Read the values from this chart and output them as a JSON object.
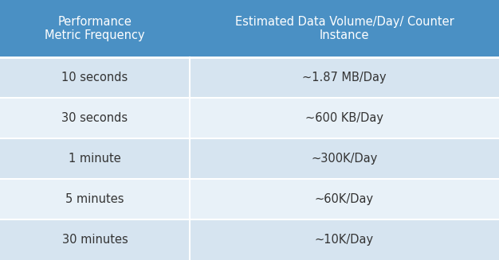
{
  "header": [
    "Performance\nMetric Frequency",
    "Estimated Data Volume/Day/ Counter\nInstance"
  ],
  "rows": [
    [
      "10 seconds",
      "~1.87 MB/Day"
    ],
    [
      "30 seconds",
      "~600 KB/Day"
    ],
    [
      "1 minute",
      "~300K/Day"
    ],
    [
      "5 minutes",
      "~60K/Day"
    ],
    [
      "30 minutes",
      "~10K/Day"
    ]
  ],
  "header_bg": "#4A90C4",
  "header_text_color": "#FFFFFF",
  "row_bg_odd": "#D6E4F0",
  "row_bg_even": "#E8F1F8",
  "row_text_color": "#333333",
  "separator_color": "#FFFFFF",
  "col_split": 0.38,
  "figsize": [
    6.26,
    3.27
  ],
  "dpi": 100,
  "font_size_header": 10.5,
  "font_size_row": 10.5
}
